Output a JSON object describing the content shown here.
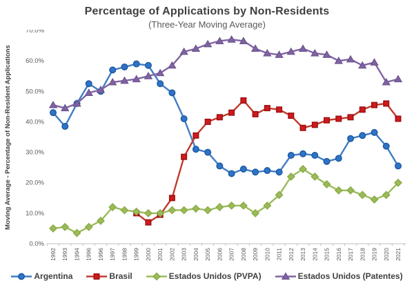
{
  "title": "Percentage of Applications by Non-Residents",
  "subtitle": "(Three-Year Moving Average)",
  "chart_data": {
    "type": "line",
    "title": "Percentage of Applications by Non-Residents",
    "subtitle": "(Three-Year Moving Average)",
    "xlabel": "",
    "ylabel": "Moving Average - Percentage of Non-Resident Applications",
    "ylim": [
      0,
      70
    ],
    "y_tick_labels": [
      "0.0%",
      "10.0%",
      "20.0%",
      "30.0%",
      "40.0%",
      "50.0%",
      "60.0%",
      "70.0%"
    ],
    "grid": false,
    "legend_position": "bottom",
    "categories": [
      "1992",
      "1993",
      "1994",
      "1996",
      "1996",
      "1997",
      "1998",
      "1999",
      "2000",
      "2001",
      "2002",
      "2003",
      "2004",
      "2005",
      "2006",
      "2007",
      "2008",
      "2009",
      "2010",
      "2011",
      "2012",
      "2013",
      "2014",
      "2015",
      "2016",
      "2017",
      "2018",
      "2019",
      "2020",
      "2021"
    ],
    "series": [
      {
        "name": "Argentina",
        "marker": "circle",
        "line_color": "#3f7dc4",
        "fill_color": "#2e74c8",
        "stroke_color": "#1d579e",
        "values": [
          43,
          38.5,
          46,
          52.5,
          50,
          57,
          58,
          59,
          58.5,
          52.5,
          49.5,
          41,
          31,
          30,
          25.5,
          23,
          24.5,
          23.5,
          24,
          23.5,
          29,
          29.5,
          29,
          27,
          28,
          34.5,
          35.5,
          36.5,
          32,
          25.5
        ]
      },
      {
        "name": "Brasil",
        "marker": "square",
        "line_color": "#c0392b",
        "fill_color": "#ce1b1e",
        "stroke_color": "#9c0e10",
        "values": [
          null,
          null,
          null,
          null,
          null,
          null,
          null,
          10,
          7,
          9.5,
          15,
          28.5,
          35.5,
          40,
          41.5,
          43,
          47,
          42.5,
          44.5,
          44,
          42,
          38,
          39,
          40.5,
          41,
          41.5,
          44,
          45.5,
          46,
          41
        ]
      },
      {
        "name": "Estados Unidos (PVPA)",
        "marker": "diamond",
        "line_color": "#9bbb59",
        "fill_color": "#9bbb59",
        "stroke_color": "#8aaa47",
        "values": [
          5,
          5.5,
          3.5,
          5.5,
          7.5,
          12,
          11,
          10.5,
          10,
          10,
          11,
          11,
          11.5,
          11,
          12,
          12.5,
          12.5,
          10,
          12.5,
          16,
          22,
          24.5,
          22,
          19.5,
          17.5,
          17.5,
          16,
          14.5,
          16,
          20
        ]
      },
      {
        "name": "Estados Unidos (Patentes)",
        "marker": "triangle",
        "line_color": "#8064a2",
        "fill_color": "#8064a2",
        "stroke_color": "#6f5591",
        "values": [
          45.5,
          44.5,
          46,
          49.5,
          50.5,
          53,
          53.5,
          54,
          55,
          56,
          58.5,
          63,
          64,
          65.5,
          66.5,
          67,
          66.5,
          64,
          62.5,
          62,
          63,
          64,
          62.5,
          62,
          60,
          60.5,
          58.5,
          59.5,
          53,
          54
        ]
      }
    ],
    "axis_color": "#bfbfbf",
    "tick_text_color": "#595959",
    "ylabel_color": "#3f3f3f"
  }
}
